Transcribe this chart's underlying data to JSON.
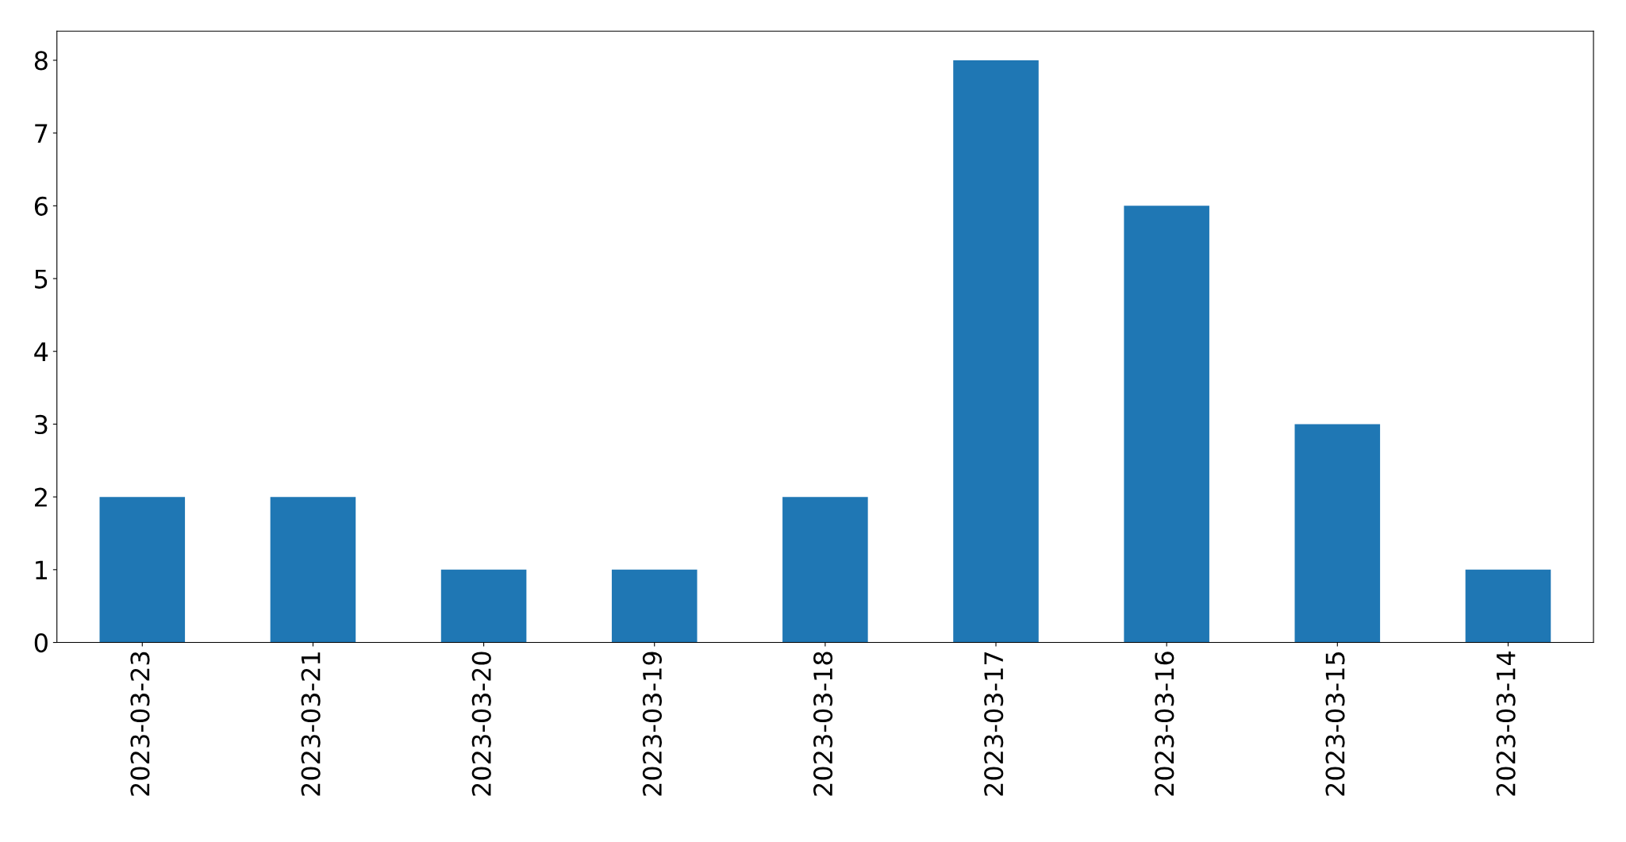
{
  "chart_data": {
    "type": "bar",
    "categories": [
      "2023-03-23",
      "2023-03-21",
      "2023-03-20",
      "2023-03-19",
      "2023-03-18",
      "2023-03-17",
      "2023-03-16",
      "2023-03-15",
      "2023-03-14"
    ],
    "values": [
      2,
      2,
      1,
      1,
      2,
      8,
      6,
      3,
      1
    ],
    "color": "#1f77b4",
    "ylim": [
      0,
      8.4
    ],
    "yticks": [
      0,
      1,
      2,
      3,
      4,
      5,
      6,
      7,
      8
    ],
    "grid": false
  }
}
